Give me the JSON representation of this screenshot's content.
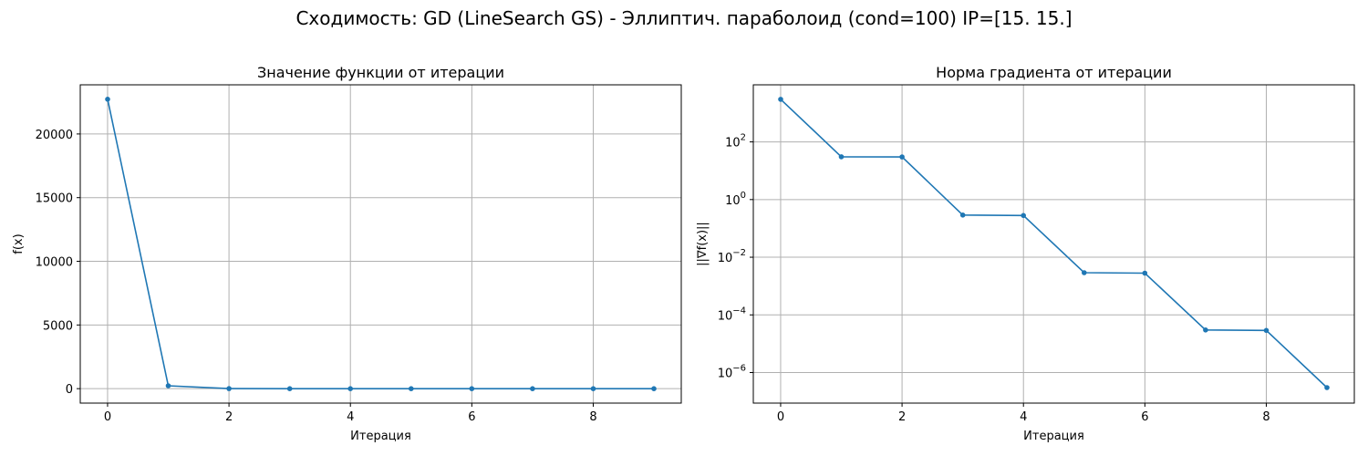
{
  "figure": {
    "title": "Сходимость: GD (LineSearch GS) - Эллиптич. параболоид (cond=100) IP=[15. 15.]"
  },
  "chart_data": [
    {
      "type": "line",
      "title": "Значение функции от итерации",
      "xlabel": "Итерация",
      "ylabel": "f(x)",
      "x": [
        0,
        1,
        2,
        3,
        4,
        5,
        6,
        7,
        8,
        9
      ],
      "series": [
        {
          "values": [
            22725,
            227,
            2.27,
            0.0227,
            0.000227,
            2.27e-06,
            2.27e-08,
            2.27e-10,
            2.27e-12,
            2.27e-14
          ]
        }
      ],
      "xlim": [
        -0.45,
        9.45
      ],
      "ylim": [
        -1135,
        23860
      ],
      "xticks": [
        0,
        2,
        4,
        6,
        8
      ],
      "yticks": [
        0,
        5000,
        10000,
        15000,
        20000
      ],
      "ytick_labels": [
        "0",
        "5000",
        "10000",
        "15000",
        "20000"
      ],
      "yscale": "linear",
      "grid": true,
      "marker": "dot",
      "color": "#1f77b4"
    },
    {
      "type": "line",
      "title": "Норма градиента от итерации",
      "xlabel": "Итерация",
      "ylabel": "||∇f(x)||",
      "x": [
        0,
        1,
        2,
        3,
        4,
        5,
        6,
        7,
        8,
        9
      ],
      "series": [
        {
          "values": [
            3000,
            30.5,
            30,
            0.29,
            0.28,
            0.0029,
            0.0028,
            3e-05,
            2.9e-05,
            3e-07
          ]
        }
      ],
      "xlim": [
        -0.45,
        9.45
      ],
      "ylim_log10": [
        -7.06,
        3.98
      ],
      "xticks": [
        0,
        2,
        4,
        6,
        8
      ],
      "yticks_log10": [
        2,
        0,
        -2,
        -4,
        -6
      ],
      "ytick_labels": [
        {
          "base": "10",
          "exp": "2"
        },
        {
          "base": "10",
          "exp": "0"
        },
        {
          "base": "10",
          "exp": "−2"
        },
        {
          "base": "10",
          "exp": "−4"
        },
        {
          "base": "10",
          "exp": "−6"
        }
      ],
      "yscale": "log",
      "grid": true,
      "marker": "dot",
      "color": "#1f77b4"
    }
  ]
}
